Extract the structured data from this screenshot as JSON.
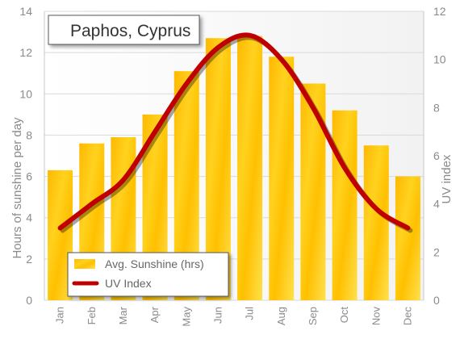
{
  "chart_data": {
    "type": "bar",
    "title": "Paphos, Cyprus",
    "categories": [
      "Jan",
      "Feb",
      "Mar",
      "Apr",
      "May",
      "Jun",
      "Jul",
      "Aug",
      "Sep",
      "Oct",
      "Nov",
      "Dec"
    ],
    "series": [
      {
        "name": "Avg. Sunshine (hrs)",
        "type": "bar",
        "axis": "left",
        "color": "#FFC107",
        "values": [
          6.3,
          7.6,
          7.9,
          9.0,
          11.1,
          12.7,
          12.8,
          11.8,
          10.5,
          9.2,
          7.5,
          6.0
        ]
      },
      {
        "name": "UV Index",
        "type": "line",
        "axis": "right",
        "color": "#C00000",
        "values": [
          3,
          4,
          5,
          7,
          9,
          10.5,
          11,
          10,
          8,
          5.5,
          3.8,
          3
        ]
      }
    ],
    "ylabel": "Hours of sunshine per day",
    "ylabel_right": "UV index",
    "ylim": [
      0,
      14
    ],
    "ylim_right": [
      0,
      12
    ],
    "yticks": [
      "0",
      "2",
      "4",
      "6",
      "8",
      "10",
      "12",
      "14"
    ],
    "yticks_right": [
      "0",
      "2",
      "4",
      "6",
      "8",
      "10",
      "12"
    ],
    "grid": true,
    "legend_position": "bottom-left"
  }
}
